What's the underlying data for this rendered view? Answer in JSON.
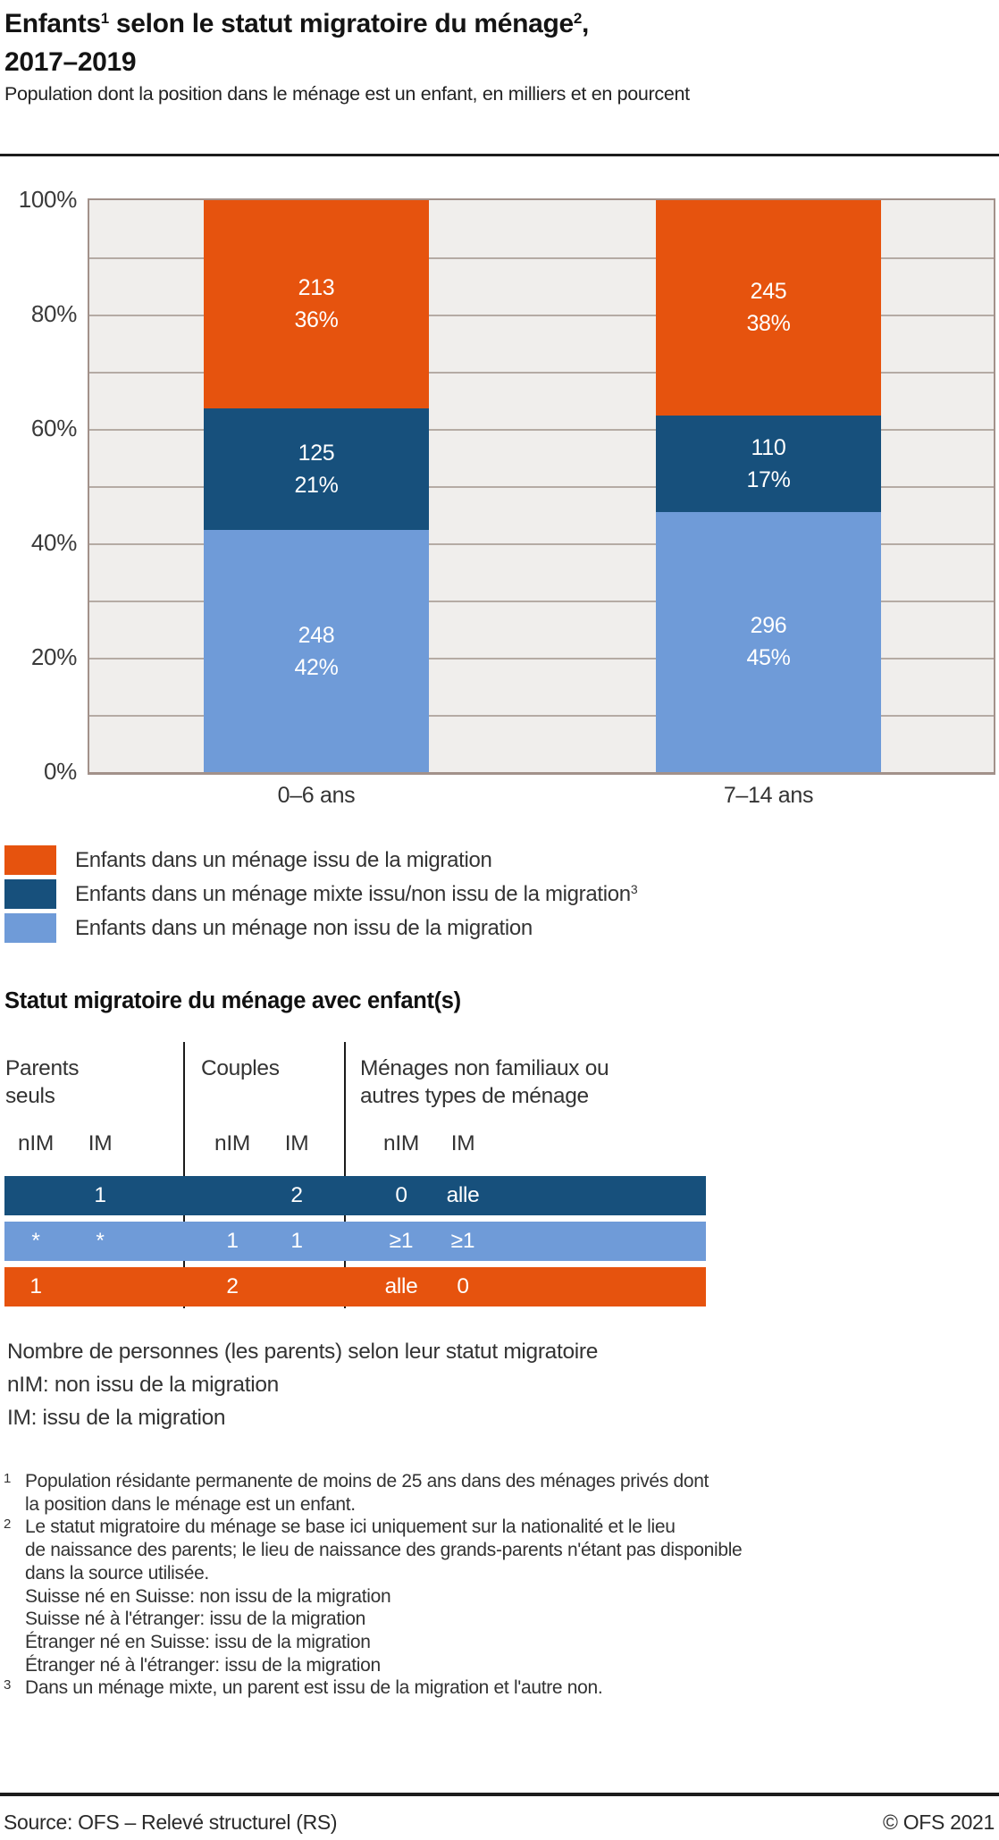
{
  "header": {
    "title": {
      "part1": "Enfants",
      "sup1": "1",
      "part2": " selon le statut migratoire du ménage",
      "sup2": "2",
      "part3": ",",
      "line2": "2017–2019"
    },
    "subtitle": "Population dont la position dans le ménage est un enfant, en milliers et en pourcent"
  },
  "chart_data": {
    "type": "bar",
    "subtype": "stacked-100-percent",
    "title": "Enfants selon le statut migratoire du ménage, 2017–2019",
    "unit": "en milliers et en pourcent",
    "categories": [
      "0–6 ans",
      "7–14 ans"
    ],
    "y_tick_labels": [
      "100%",
      "80%",
      "60%",
      "40%",
      "20%",
      "0%"
    ],
    "ylim": [
      0,
      100
    ],
    "grid": "horizontal every 10%",
    "legend_position": "below",
    "series": [
      {
        "name": "Enfants dans un ménage issu de la migration",
        "color": "#E6530E",
        "values": [
          213,
          245
        ],
        "pct_labels": [
          "36%",
          "38%"
        ]
      },
      {
        "name": "Enfants dans un ménage mixte issu/non issu de la migration",
        "color": "#17507C",
        "values": [
          125,
          110
        ],
        "pct_labels": [
          "21%",
          "17%"
        ]
      },
      {
        "name": "Enfants dans un ménage non issu de la migration",
        "color": "#6F9BD8",
        "values": [
          248,
          296
        ],
        "pct_labels": [
          "42%",
          "45%"
        ]
      }
    ]
  },
  "legend": {
    "items": [
      {
        "label": "Enfants dans un ménage issu de la migration",
        "sup": ""
      },
      {
        "label": "Enfants dans un ménage mixte issu/non issu de la migration",
        "sup": "3"
      },
      {
        "label": "Enfants dans un ménage non issu de la migration",
        "sup": ""
      }
    ]
  },
  "table": {
    "heading": "Statut migratoire du ménage avec enfant(s)",
    "groups": [
      {
        "line1": "Parents",
        "line2": "seuls",
        "col1": "nIM",
        "col2": "IM"
      },
      {
        "line1": "Couples",
        "line2": "",
        "col1": "nIM",
        "col2": "IM"
      },
      {
        "line1": "Ménages non familiaux ou",
        "line2": "autres types de ménage",
        "col1": "nIM",
        "col2": "IM"
      }
    ],
    "rows": [
      {
        "color": "#17507C",
        "cells": [
          "",
          "1",
          "",
          "2",
          "0",
          "alle"
        ]
      },
      {
        "color": "#6F9BD8",
        "cells": [
          "*",
          "*",
          "1",
          "1",
          "≥1",
          "≥1"
        ]
      },
      {
        "color": "#E6530E",
        "cells": [
          "1",
          "",
          "2",
          "",
          "alle",
          "0"
        ]
      }
    ],
    "notes": [
      "Nombre de personnes (les parents) selon leur statut migratoire",
      "nIM: non issu de la migration",
      "IM: issu de la migration"
    ]
  },
  "footnotes": [
    {
      "sup": "1",
      "lines": [
        "Population résidante permanente de moins de 25 ans dans des ménages privés dont",
        "la position dans le ménage est un enfant."
      ]
    },
    {
      "sup": "2",
      "lines": [
        "Le statut migratoire du ménage se base ici uniquement sur la nationalité et le lieu",
        "de naissance des parents; le lieu de naissance des grands-parents n'étant pas disponible",
        "dans la source utilisée.",
        "Suisse né en Suisse: non issu de la migration",
        "Suisse né à l'étranger: issu de la migration",
        "Étranger né en Suisse: issu de la migration",
        "Étranger né à l'étranger: issu de la migration"
      ]
    },
    {
      "sup": "3",
      "lines": [
        "Dans un ménage mixte, un parent est issu de la migration et l'autre non."
      ]
    }
  ],
  "footer": {
    "source": "Source: OFS – Relevé structurel (RS)",
    "copyright": "© OFS 2021"
  }
}
